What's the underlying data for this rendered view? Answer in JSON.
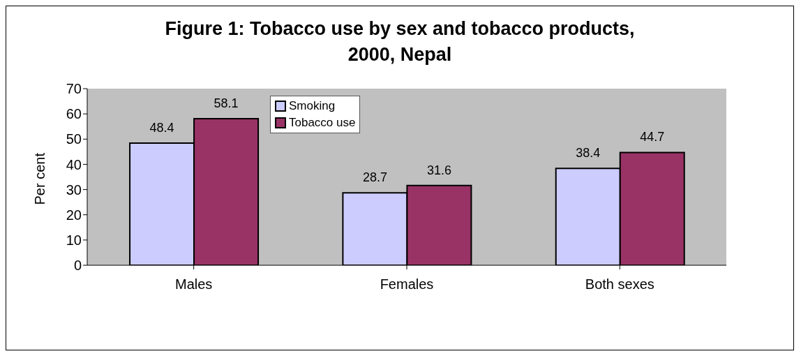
{
  "chart_data": {
    "type": "bar",
    "title": "Figure 1: Tobacco use by sex and tobacco products, 2000, Nepal",
    "ylabel": "Per cent",
    "categories": [
      "Males",
      "Females",
      "Both sexes"
    ],
    "series": [
      {
        "name": "Smoking",
        "color": "#ccccff",
        "values": [
          48.4,
          28.7,
          38.4
        ]
      },
      {
        "name": "Tobacco use",
        "color": "#993366",
        "values": [
          58.1,
          31.6,
          44.7
        ]
      }
    ],
    "ylim": [
      0,
      70
    ],
    "yticks": [
      0,
      10,
      20,
      30,
      40,
      50,
      60,
      70
    ],
    "data_labels": true,
    "legend": "top"
  }
}
